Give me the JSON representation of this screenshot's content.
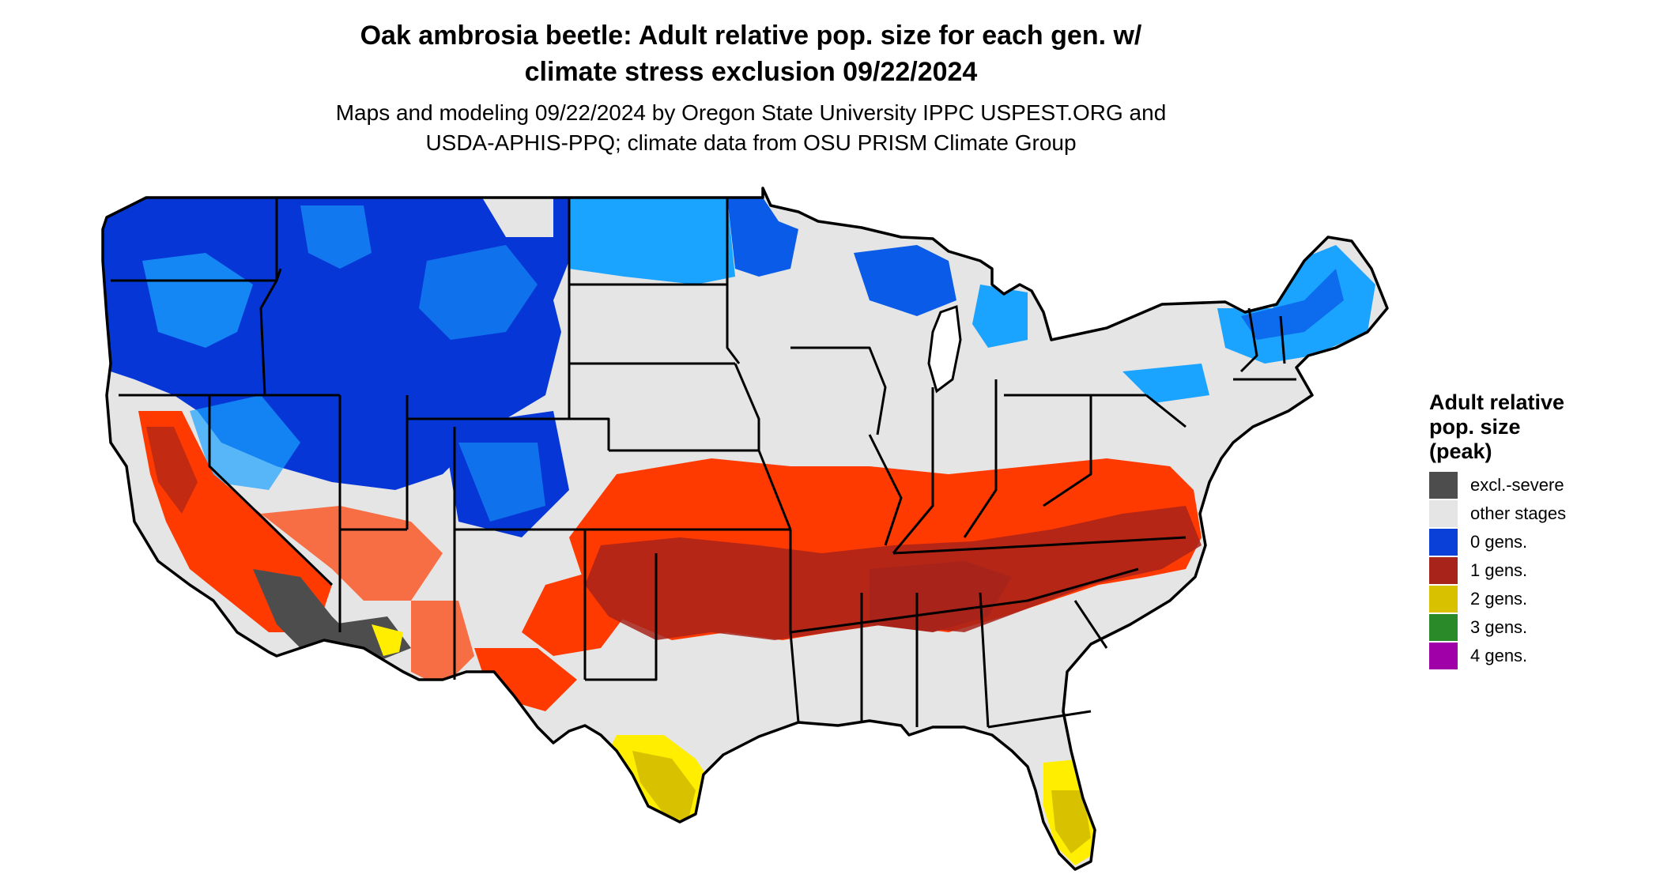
{
  "title_line1": "Oak ambrosia beetle: Adult relative pop. size for each gen. w/",
  "title_line2": "climate stress exclusion 09/22/2024",
  "subtitle_line1": "Maps and modeling 09/22/2024 by Oregon State University IPPC USPEST.ORG and",
  "subtitle_line2": "USDA-APHIS-PPQ; climate data from OSU PRISM Climate Group",
  "legend": {
    "title_line1": "Adult relative",
    "title_line2": "pop. size",
    "title_line3": "(peak)",
    "items": [
      {
        "label": "excl.-severe",
        "color": "#4d4d4d"
      },
      {
        "label": "other stages",
        "color": "#e5e5e5"
      },
      {
        "label": "0 gens.",
        "color": "#0a3fd8"
      },
      {
        "label": "1 gens.",
        "color": "#a8231a"
      },
      {
        "label": "2 gens.",
        "color": "#d8c200"
      },
      {
        "label": "3 gens.",
        "color": "#2a8a2a"
      },
      {
        "label": "4 gens.",
        "color": "#a000a8"
      }
    ]
  },
  "colors": {
    "deep_blue": "#0637d6",
    "sky_blue": "#1aa3ff",
    "light_blue": "#3ec3ff",
    "orange_red": "#ff3a00",
    "dark_red": "#a8231a",
    "yellow": "#ffee00",
    "olive_yellow": "#d8c200",
    "gray_excluded": "#4d4d4d",
    "land_other": "#e5e5e5",
    "border": "#000000"
  }
}
